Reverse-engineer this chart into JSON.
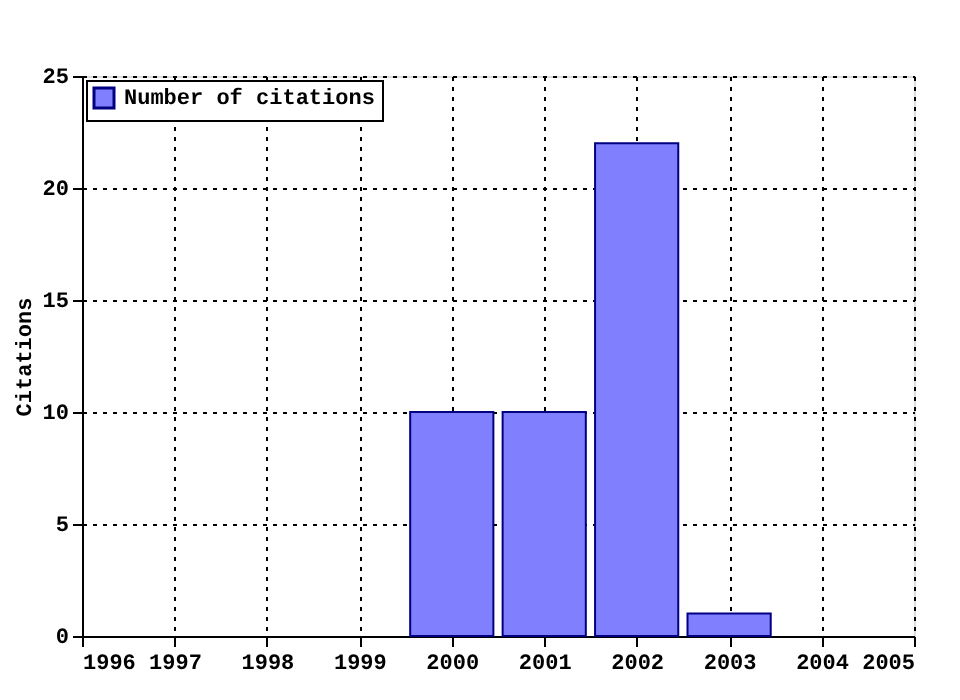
{
  "chart_data": {
    "type": "bar",
    "ylabel": "Citations",
    "x": [
      2000,
      2001,
      2002,
      2003
    ],
    "series": [
      {
        "name": "Number of citations",
        "color": "#8080ff",
        "values": [
          10,
          10,
          22,
          1
        ]
      }
    ],
    "xlim": [
      1996,
      2005
    ],
    "xticks": [
      1996,
      1997,
      1998,
      1999,
      2000,
      2001,
      2002,
      2003,
      2004,
      2005
    ],
    "ylim": [
      0,
      25
    ],
    "yticks": [
      0,
      5,
      10,
      15,
      20,
      25
    ],
    "grid": true,
    "legend": "top left"
  }
}
